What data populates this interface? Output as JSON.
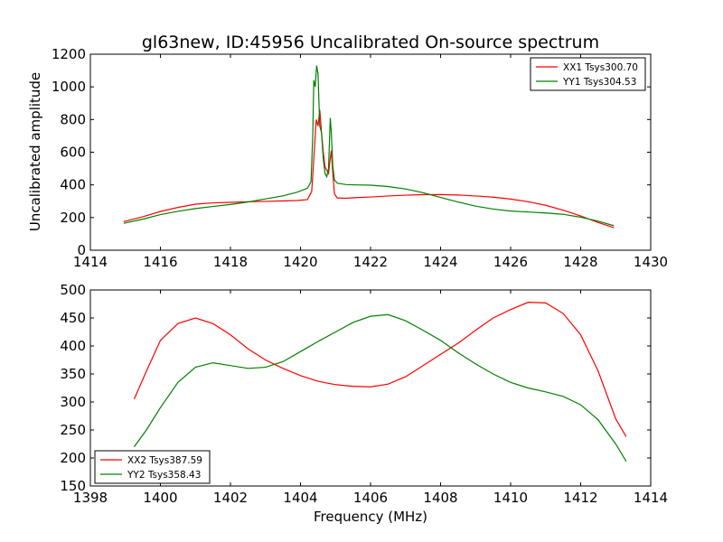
{
  "title": "gl63new, ID:45956 Uncalibrated On-source spectrum",
  "shared_xlabel": "Frequency (MHz)",
  "colors": {
    "red": "#ff0000",
    "green": "#008000",
    "axes": "#000000",
    "background": "#ffffff"
  },
  "chart_data": [
    {
      "type": "line",
      "title": "gl63new, ID:45956 Uncalibrated On-source spectrum",
      "xlabel": "",
      "ylabel": "Uncalibrated amplitude",
      "xlim": [
        1414,
        1430
      ],
      "ylim": [
        0,
        1200
      ],
      "xticks": [
        1414,
        1416,
        1418,
        1420,
        1422,
        1424,
        1426,
        1428,
        1430
      ],
      "yticks": [
        0,
        200,
        400,
        600,
        800,
        1000,
        1200
      ],
      "grid": false,
      "legend_position": "top-right",
      "series": [
        {
          "name": "XX1 Tsys300.70",
          "color": "#ff0000",
          "points": [
            [
              1414.95,
              175
            ],
            [
              1415.5,
              205
            ],
            [
              1416,
              237
            ],
            [
              1416.5,
              262
            ],
            [
              1417,
              282
            ],
            [
              1417.5,
              290
            ],
            [
              1418,
              293
            ],
            [
              1418.5,
              297
            ],
            [
              1419,
              299
            ],
            [
              1419.5,
              302
            ],
            [
              1419.9,
              304
            ],
            [
              1420.2,
              310
            ],
            [
              1420.32,
              360
            ],
            [
              1420.38,
              560
            ],
            [
              1420.45,
              800
            ],
            [
              1420.5,
              760
            ],
            [
              1420.55,
              860
            ],
            [
              1420.6,
              720
            ],
            [
              1420.65,
              600
            ],
            [
              1420.7,
              510
            ],
            [
              1420.75,
              490
            ],
            [
              1420.8,
              470
            ],
            [
              1420.85,
              560
            ],
            [
              1420.88,
              610
            ],
            [
              1420.92,
              480
            ],
            [
              1420.97,
              345
            ],
            [
              1421.05,
              320
            ],
            [
              1421.3,
              318
            ],
            [
              1421.6,
              322
            ],
            [
              1422,
              326
            ],
            [
              1422.5,
              332
            ],
            [
              1423,
              337
            ],
            [
              1423.5,
              340
            ],
            [
              1424,
              341
            ],
            [
              1424.5,
              338
            ],
            [
              1425,
              332
            ],
            [
              1425.5,
              325
            ],
            [
              1426,
              313
            ],
            [
              1426.5,
              297
            ],
            [
              1427,
              275
            ],
            [
              1427.5,
              245
            ],
            [
              1428,
              210
            ],
            [
              1428.5,
              170
            ],
            [
              1428.95,
              138
            ]
          ]
        },
        {
          "name": "YY1 Tsys304.53",
          "color": "#008000",
          "points": [
            [
              1414.95,
              165
            ],
            [
              1415.5,
              190
            ],
            [
              1416,
              218
            ],
            [
              1416.5,
              238
            ],
            [
              1417,
              255
            ],
            [
              1417.5,
              268
            ],
            [
              1418,
              280
            ],
            [
              1418.5,
              295
            ],
            [
              1419,
              314
            ],
            [
              1419.5,
              333
            ],
            [
              1419.9,
              355
            ],
            [
              1420.2,
              380
            ],
            [
              1420.3,
              420
            ],
            [
              1420.35,
              700
            ],
            [
              1420.38,
              1040
            ],
            [
              1420.42,
              1000
            ],
            [
              1420.46,
              1130
            ],
            [
              1420.5,
              1080
            ],
            [
              1420.55,
              760
            ],
            [
              1420.6,
              720
            ],
            [
              1420.65,
              560
            ],
            [
              1420.7,
              470
            ],
            [
              1420.75,
              450
            ],
            [
              1420.8,
              500
            ],
            [
              1420.85,
              810
            ],
            [
              1420.88,
              720
            ],
            [
              1420.92,
              520
            ],
            [
              1420.97,
              430
            ],
            [
              1421.05,
              410
            ],
            [
              1421.3,
              402
            ],
            [
              1421.6,
              400
            ],
            [
              1422,
              398
            ],
            [
              1422.5,
              390
            ],
            [
              1423,
              375
            ],
            [
              1423.5,
              352
            ],
            [
              1424,
              323
            ],
            [
              1424.5,
              295
            ],
            [
              1425,
              270
            ],
            [
              1425.5,
              252
            ],
            [
              1426,
              240
            ],
            [
              1426.5,
              234
            ],
            [
              1427,
              228
            ],
            [
              1427.5,
              220
            ],
            [
              1428,
              202
            ],
            [
              1428.5,
              178
            ],
            [
              1428.95,
              150
            ]
          ]
        }
      ]
    },
    {
      "type": "line",
      "title": "",
      "xlabel": "Frequency (MHz)",
      "ylabel": "",
      "xlim": [
        1398,
        1414
      ],
      "ylim": [
        150,
        500
      ],
      "xticks": [
        1398,
        1400,
        1402,
        1404,
        1406,
        1408,
        1410,
        1412,
        1414
      ],
      "yticks": [
        150,
        200,
        250,
        300,
        350,
        400,
        450,
        500
      ],
      "grid": false,
      "legend_position": "bottom-left",
      "series": [
        {
          "name": "XX2 Tsys387.59",
          "color": "#ff0000",
          "points": [
            [
              1399.25,
              305
            ],
            [
              1399.6,
              355
            ],
            [
              1400,
              410
            ],
            [
              1400.5,
              440
            ],
            [
              1401,
              450
            ],
            [
              1401.5,
              440
            ],
            [
              1402,
              420
            ],
            [
              1402.5,
              395
            ],
            [
              1403,
              375
            ],
            [
              1403.5,
              360
            ],
            [
              1404,
              347
            ],
            [
              1404.5,
              337
            ],
            [
              1405,
              331
            ],
            [
              1405.5,
              328
            ],
            [
              1406,
              327
            ],
            [
              1406.5,
              332
            ],
            [
              1407,
              345
            ],
            [
              1407.5,
              365
            ],
            [
              1408,
              385
            ],
            [
              1408.5,
              405
            ],
            [
              1409,
              428
            ],
            [
              1409.5,
              450
            ],
            [
              1410,
              465
            ],
            [
              1410.5,
              478
            ],
            [
              1411,
              477
            ],
            [
              1411.5,
              458
            ],
            [
              1412,
              420
            ],
            [
              1412.5,
              355
            ],
            [
              1413,
              270
            ],
            [
              1413.3,
              238
            ]
          ]
        },
        {
          "name": "YY2 Tsys358.43",
          "color": "#008000",
          "points": [
            [
              1399.25,
              220
            ],
            [
              1399.6,
              250
            ],
            [
              1400,
              290
            ],
            [
              1400.5,
              335
            ],
            [
              1401,
              362
            ],
            [
              1401.5,
              370
            ],
            [
              1402,
              365
            ],
            [
              1402.5,
              360
            ],
            [
              1403,
              362
            ],
            [
              1403.5,
              372
            ],
            [
              1404,
              390
            ],
            [
              1404.5,
              408
            ],
            [
              1405,
              425
            ],
            [
              1405.5,
              442
            ],
            [
              1406,
              453
            ],
            [
              1406.5,
              456
            ],
            [
              1407,
              445
            ],
            [
              1407.5,
              428
            ],
            [
              1408,
              410
            ],
            [
              1408.5,
              388
            ],
            [
              1409,
              368
            ],
            [
              1409.5,
              350
            ],
            [
              1410,
              335
            ],
            [
              1410.5,
              325
            ],
            [
              1411,
              318
            ],
            [
              1411.5,
              310
            ],
            [
              1412,
              295
            ],
            [
              1412.5,
              268
            ],
            [
              1413,
              225
            ],
            [
              1413.3,
              194
            ]
          ]
        }
      ]
    }
  ]
}
